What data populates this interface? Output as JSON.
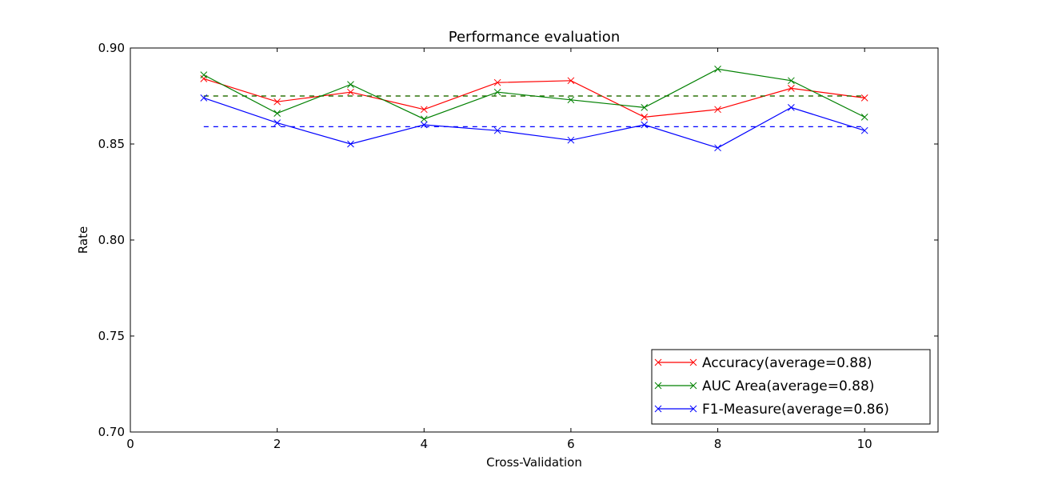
{
  "chart_data": {
    "type": "line",
    "title": "Performance evaluation",
    "xlabel": "Cross-Validation",
    "ylabel": "Rate",
    "xlim": [
      0,
      11
    ],
    "ylim": [
      0.7,
      0.9
    ],
    "xticks": [
      0,
      2,
      4,
      6,
      8,
      10
    ],
    "xtick_labels": [
      "0",
      "2",
      "4",
      "6",
      "8",
      "10"
    ],
    "yticks": [
      0.7,
      0.75,
      0.8,
      0.85,
      0.9
    ],
    "ytick_labels": [
      "0.70",
      "0.75",
      "0.80",
      "0.85",
      "0.90"
    ],
    "grid": false,
    "legend_position": "lower-right",
    "x": [
      1,
      2,
      3,
      4,
      5,
      6,
      7,
      8,
      9,
      10
    ],
    "series": [
      {
        "name": "Accuracy(average=0.88)",
        "color": "#ff0000",
        "marker": "x",
        "values": [
          0.884,
          0.872,
          0.877,
          0.868,
          0.882,
          0.883,
          0.864,
          0.868,
          0.879,
          0.874
        ],
        "average": 0.875
      },
      {
        "name": "AUC Area(average=0.88)",
        "color": "#008000",
        "marker": "x",
        "values": [
          0.886,
          0.866,
          0.881,
          0.863,
          0.877,
          0.873,
          0.869,
          0.889,
          0.883,
          0.864
        ],
        "average": 0.875
      },
      {
        "name": "F1-Measure(average=0.86)",
        "color": "#0000ff",
        "marker": "x",
        "values": [
          0.874,
          0.861,
          0.85,
          0.86,
          0.857,
          0.852,
          0.86,
          0.848,
          0.869,
          0.857
        ],
        "average": 0.859
      }
    ]
  }
}
